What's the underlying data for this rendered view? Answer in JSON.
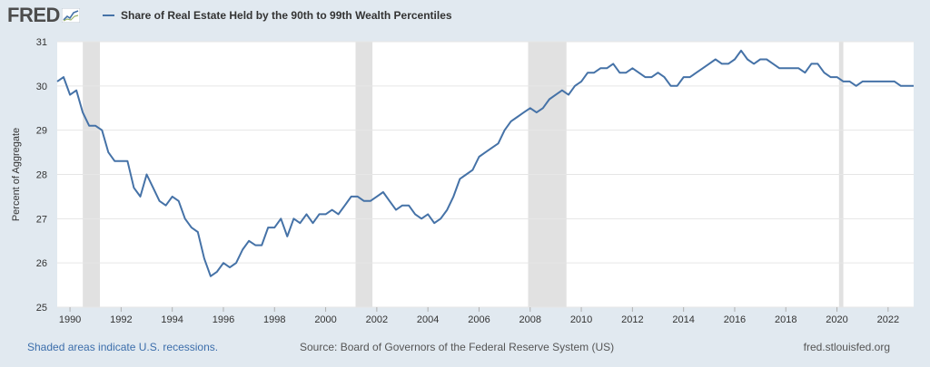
{
  "header": {
    "logo_text": "FRED",
    "logo_icon": "fred-chart-icon"
  },
  "footer": {
    "recession_note": "Shaded areas indicate U.S. recessions.",
    "source": "Source: Board of Governors of the Federal Reserve System (US)",
    "site": "fred.stlouisfed.org"
  },
  "colors": {
    "line": "#4572a7",
    "recession": "#e1e1e1",
    "background": "#e1e9f0",
    "plot_bg": "#ffffff"
  },
  "chart_data": {
    "type": "line",
    "title": "Share of Real Estate Held by the 90th to 99th Wealth Percentiles",
    "xlabel": "",
    "ylabel": "Percent of Aggregate",
    "xlim": [
      1989.5,
      2023.0
    ],
    "ylim": [
      25,
      31
    ],
    "grid": true,
    "legend_position": "top-left",
    "yticks": [
      25,
      26,
      27,
      28,
      29,
      30,
      31
    ],
    "xticks": [
      1990,
      1992,
      1994,
      1996,
      1998,
      2000,
      2002,
      2004,
      2006,
      2008,
      2010,
      2012,
      2014,
      2016,
      2018,
      2020,
      2022
    ],
    "recessions": [
      [
        1990.5,
        1991.17
      ],
      [
        2001.17,
        2001.83
      ],
      [
        2007.92,
        2009.42
      ],
      [
        2020.08,
        2020.25
      ]
    ],
    "series": [
      {
        "name": "Share of Real Estate Held by the 90th to 99th Wealth Percentiles",
        "x": [
          1989.5,
          1989.75,
          1990,
          1990.25,
          1990.5,
          1990.75,
          1991,
          1991.25,
          1991.5,
          1991.75,
          1992,
          1992.25,
          1992.5,
          1992.75,
          1993,
          1993.25,
          1993.5,
          1993.75,
          1994,
          1994.25,
          1994.5,
          1994.75,
          1995,
          1995.25,
          1995.5,
          1995.75,
          1996,
          1996.25,
          1996.5,
          1996.75,
          1997,
          1997.25,
          1997.5,
          1997.75,
          1998,
          1998.25,
          1998.5,
          1998.75,
          1999,
          1999.25,
          1999.5,
          1999.75,
          2000,
          2000.25,
          2000.5,
          2000.75,
          2001,
          2001.25,
          2001.5,
          2001.75,
          2002,
          2002.25,
          2002.5,
          2002.75,
          2003,
          2003.25,
          2003.5,
          2003.75,
          2004,
          2004.25,
          2004.5,
          2004.75,
          2005,
          2005.25,
          2005.5,
          2005.75,
          2006,
          2006.25,
          2006.5,
          2006.75,
          2007,
          2007.25,
          2007.5,
          2007.75,
          2008,
          2008.25,
          2008.5,
          2008.75,
          2009,
          2009.25,
          2009.5,
          2009.75,
          2010,
          2010.25,
          2010.5,
          2010.75,
          2011,
          2011.25,
          2011.5,
          2011.75,
          2012,
          2012.25,
          2012.5,
          2012.75,
          2013,
          2013.25,
          2013.5,
          2013.75,
          2014,
          2014.25,
          2014.5,
          2014.75,
          2015,
          2015.25,
          2015.5,
          2015.75,
          2016,
          2016.25,
          2016.5,
          2016.75,
          2017,
          2017.25,
          2017.5,
          2017.75,
          2018,
          2018.25,
          2018.5,
          2018.75,
          2019,
          2019.25,
          2019.5,
          2019.75,
          2020,
          2020.25,
          2020.5,
          2020.75,
          2021,
          2021.25,
          2021.5,
          2021.75,
          2022,
          2022.25,
          2022.5,
          2022.75,
          2023
        ],
        "values": [
          30.1,
          30.2,
          29.8,
          29.9,
          29.4,
          29.1,
          29.1,
          29.0,
          28.5,
          28.3,
          28.3,
          28.3,
          27.7,
          27.5,
          28.0,
          27.7,
          27.4,
          27.3,
          27.5,
          27.4,
          27.0,
          26.8,
          26.7,
          26.1,
          25.7,
          25.8,
          26.0,
          25.9,
          26.0,
          26.3,
          26.5,
          26.4,
          26.4,
          26.8,
          26.8,
          27.0,
          26.6,
          27.0,
          26.9,
          27.1,
          26.9,
          27.1,
          27.1,
          27.2,
          27.1,
          27.3,
          27.5,
          27.5,
          27.4,
          27.4,
          27.5,
          27.6,
          27.4,
          27.2,
          27.3,
          27.3,
          27.1,
          27.0,
          27.1,
          26.9,
          27.0,
          27.2,
          27.5,
          27.9,
          28.0,
          28.1,
          28.4,
          28.5,
          28.6,
          28.7,
          29.0,
          29.2,
          29.3,
          29.4,
          29.5,
          29.4,
          29.5,
          29.7,
          29.8,
          29.9,
          29.8,
          30.0,
          30.1,
          30.3,
          30.3,
          30.4,
          30.4,
          30.5,
          30.3,
          30.3,
          30.4,
          30.3,
          30.2,
          30.2,
          30.3,
          30.2,
          30.0,
          30.0,
          30.2,
          30.2,
          30.3,
          30.4,
          30.5,
          30.6,
          30.5,
          30.5,
          30.6,
          30.8,
          30.6,
          30.5,
          30.6,
          30.6,
          30.5,
          30.4,
          30.4,
          30.4,
          30.4,
          30.3,
          30.5,
          30.5,
          30.3,
          30.2,
          30.2,
          30.1,
          30.1,
          30.0,
          30.1,
          30.1,
          30.1,
          30.1,
          30.1,
          30.1,
          30.0,
          30.0,
          30.0
        ]
      }
    ]
  }
}
